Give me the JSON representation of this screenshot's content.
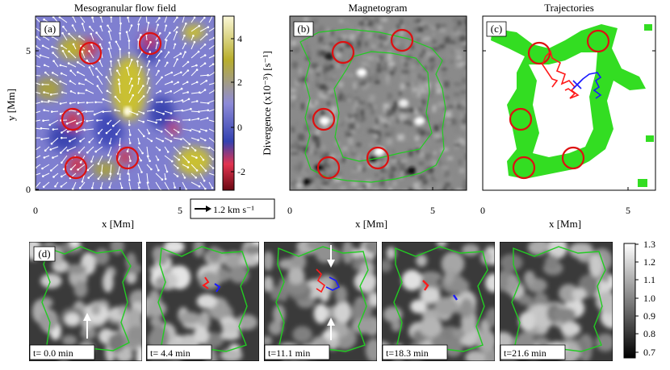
{
  "figure": {
    "panel_a": {
      "title": "Mesogranular flow field",
      "tag": "(a)",
      "ylabel": "y [Mm]",
      "xlabel": "x [Mm]",
      "xticks": [
        "0",
        "5"
      ],
      "yticks": [
        "0",
        "5"
      ],
      "colorbar": {
        "label": "Divergence (x10⁻³) [s⁻¹]",
        "ticks": [
          "4",
          "2",
          "0",
          "-2"
        ],
        "colors": [
          "#f7f3c8",
          "#b7ad2a",
          "#8d8ad8",
          "#2f3caa",
          "#e0304a",
          "#7a0a14"
        ]
      },
      "arrow_key": "1.2  km s⁻¹"
    },
    "panel_b": {
      "title": "Magnetogram",
      "tag": "(b)",
      "xlabel": "x [Mm]",
      "xticks": [
        "0",
        "5"
      ]
    },
    "panel_c": {
      "title": "Trajectories",
      "tag": "(c)",
      "xlabel": "x [Mm]",
      "xticks": [
        "0",
        "5"
      ]
    },
    "panel_d": {
      "tag": "(d)",
      "frames": [
        {
          "time": "t= 0.0 min"
        },
        {
          "time": "t= 4.4 min"
        },
        {
          "time": "t=11.1 min"
        },
        {
          "time": "t=18.3 min"
        },
        {
          "time": "t=21.6 min"
        }
      ],
      "colorbar": {
        "ticks": [
          "1.3",
          "1.2",
          "1.1",
          "1.0",
          "0.9",
          "0.8",
          "0.7"
        ]
      }
    },
    "colors": {
      "contour": "#22cc22",
      "circle": "#dd1111",
      "track_red": "#ff1a1a",
      "track_blue": "#1a1aff"
    }
  }
}
